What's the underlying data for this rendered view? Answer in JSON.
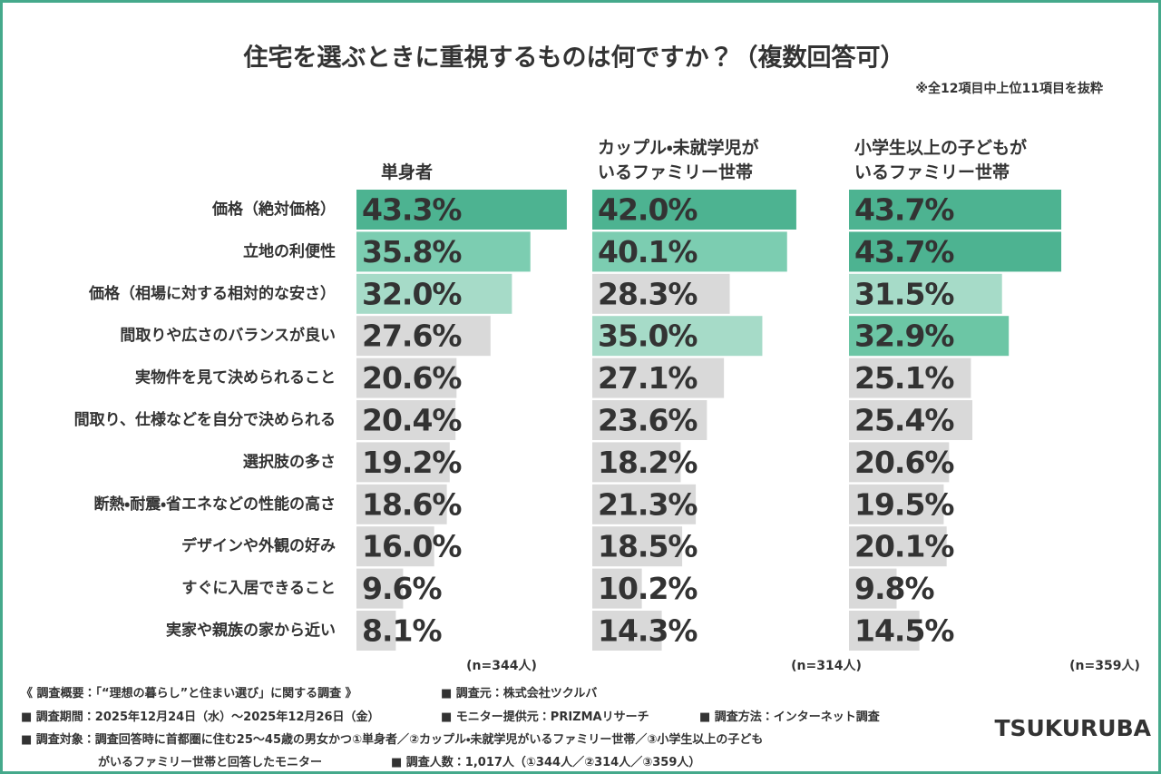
{
  "title": "住宅を選ぶときに重視するものは何ですか？（複数回答可）",
  "note": "※全12項目中上位11項目を抜粋",
  "chart_data": {
    "type": "bar",
    "categories": [
      "価格（絶対価格）",
      "立地の利便性",
      "価格（相場に対する相対的な安さ）",
      "間取りや広さのバランスが良い",
      "実物件を見て決められること",
      "間取り、仕様などを自分で決められる",
      "選択肢の多さ",
      "断熱・耐震・省エネなどの性能の高さ",
      "デザインや外観の好み",
      "すぐに入居できること",
      "実家や親族の家から近い"
    ],
    "xlim": [
      0,
      45
    ],
    "series": [
      {
        "name": "単身者",
        "n_label": "(n=344人)",
        "values": [
          43.3,
          35.8,
          32.0,
          27.6,
          20.6,
          20.4,
          19.2,
          18.6,
          16.0,
          9.6,
          8.1
        ],
        "value_labels": [
          "43.3%",
          "35.8%",
          "32.0%",
          "27.6%",
          "20.6%",
          "20.4%",
          "19.2%",
          "18.6%",
          "16.0%",
          "9.6%",
          "8.1%"
        ],
        "colors": [
          "#4db391",
          "#7ccdb1",
          "#a6dbc8",
          "#d9d9d9",
          "#d9d9d9",
          "#d9d9d9",
          "#d9d9d9",
          "#d9d9d9",
          "#d9d9d9",
          "#d9d9d9",
          "#d9d9d9"
        ]
      },
      {
        "name": "カップル・未就学児が\nいるファミリー世帯",
        "n_label": "(n=314人)",
        "values": [
          42.0,
          40.1,
          28.3,
          35.0,
          27.1,
          23.6,
          18.2,
          21.3,
          18.5,
          10.2,
          14.3
        ],
        "value_labels": [
          "42.0%",
          "40.1%",
          "28.3%",
          "35.0%",
          "27.1%",
          "23.6%",
          "18.2%",
          "21.3%",
          "18.5%",
          "10.2%",
          "14.3%"
        ],
        "colors": [
          "#4db391",
          "#7ccdb1",
          "#d9d9d9",
          "#a6dbc8",
          "#d9d9d9",
          "#d9d9d9",
          "#d9d9d9",
          "#d9d9d9",
          "#d9d9d9",
          "#d9d9d9",
          "#d9d9d9"
        ]
      },
      {
        "name": "小学生以上の子どもが\nいるファミリー世帯",
        "n_label": "(n=359人)",
        "values": [
          43.7,
          43.7,
          31.5,
          32.9,
          25.1,
          25.4,
          20.6,
          19.5,
          20.1,
          9.8,
          14.5
        ],
        "value_labels": [
          "43.7%",
          "43.7%",
          "31.5%",
          "32.9%",
          "25.1%",
          "25.4%",
          "20.6%",
          "19.5%",
          "20.1%",
          "9.8%",
          "14.5%"
        ],
        "colors": [
          "#4db391",
          "#4db391",
          "#a6dbc8",
          "#6cc6a5",
          "#d9d9d9",
          "#d9d9d9",
          "#d9d9d9",
          "#d9d9d9",
          "#d9d9d9",
          "#d9d9d9",
          "#d9d9d9"
        ]
      }
    ]
  },
  "footnotes": [
    "《 調査概要：「“理想の暮らし”と住まい選び」に関する調査 》",
    "■ 調査元：株式会社ツクルバ",
    "■ 調査期間：2025年12月24日（水）～2025年12月26日（金）",
    "■ モニター提供元：PRIZMAリサーチ",
    "■ 調査方法：インターネット調査",
    "■ 調査対象：調査回答時に首都圏に住む25～45歳の男女かつ①単身者／②カップル・未就学児がいるファミリー世帯／③小学生以上の子ども",
    "がいるファミリー世帯と回答したモニター",
    "■ 調査人数：1,017人（①344人／②314人／③359人）"
  ],
  "logo": "TSUKURUBA"
}
